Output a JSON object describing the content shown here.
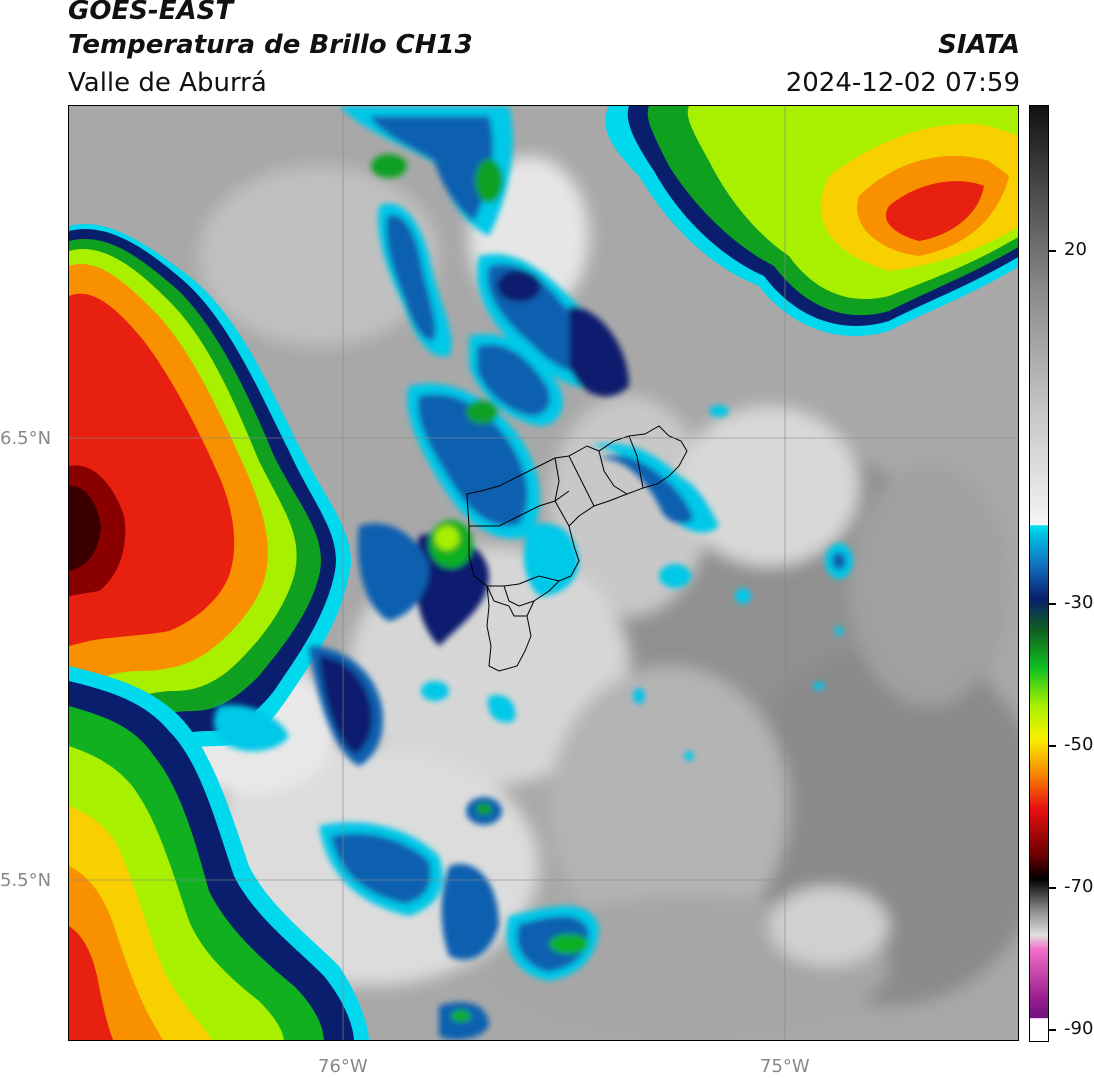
{
  "header": {
    "satellite": "GOES-EAST",
    "product": "Temperatura de Brillo CH13",
    "region": "Valle de Aburrá",
    "agency": "SIATA",
    "datetime": "2024-12-02 07:59"
  },
  "map": {
    "lat_labels": [
      "6.5°N",
      "5.5°N"
    ],
    "lon_labels": [
      "76°W",
      "75°W"
    ],
    "gridlines": true
  },
  "colorbar": {
    "unit_hint": "brightness temperature",
    "tick_labels": [
      "20",
      "-30",
      "-50",
      "-70",
      "-90"
    ],
    "colors": {
      "warm_gray_top": "#1a1a1a",
      "warm_gray_mid": "#8c8c8c",
      "warm_white": "#f2f2f2",
      "cyan": "#00d8ee",
      "blue": "#1060b0",
      "navy": "#0a1e6e",
      "green": "#10b020",
      "lime": "#a8f000",
      "yellow": "#f8f000",
      "orange": "#f89000",
      "red": "#e81010",
      "darkred": "#5a0000",
      "black": "#000000",
      "light_gray": "#c8c8c8",
      "pink": "#f060c8",
      "purple": "#801880"
    }
  }
}
